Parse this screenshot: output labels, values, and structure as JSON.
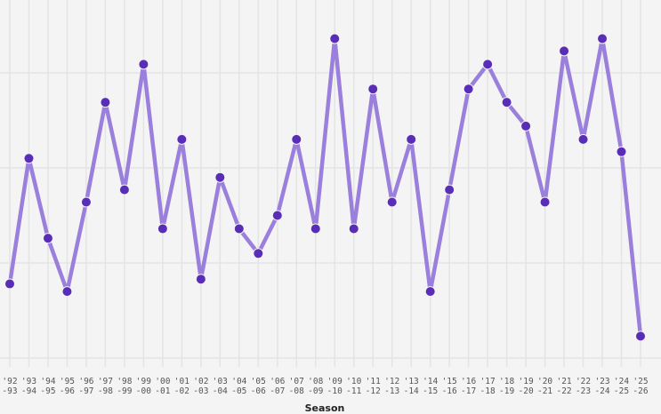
{
  "chart_data": {
    "type": "line",
    "title": "",
    "xlabel": "Season",
    "ylabel": "",
    "categories": [
      [
        "'92",
        "-93"
      ],
      [
        "'93",
        "-94"
      ],
      [
        "'94",
        "-95"
      ],
      [
        "'95",
        "-96"
      ],
      [
        "'96",
        "-97"
      ],
      [
        "'97",
        "-98"
      ],
      [
        "'98",
        "-99"
      ],
      [
        "'99",
        "-00"
      ],
      [
        "'00",
        "-01"
      ],
      [
        "'01",
        "-02"
      ],
      [
        "'02",
        "-03"
      ],
      [
        "'03",
        "-04"
      ],
      [
        "'04",
        "-05"
      ],
      [
        "'05",
        "-06"
      ],
      [
        "'06",
        "-07"
      ],
      [
        "'07",
        "-08"
      ],
      [
        "'08",
        "-09"
      ],
      [
        "'09",
        "-10"
      ],
      [
        "'10",
        "-11"
      ],
      [
        "'11",
        "-12"
      ],
      [
        "'12",
        "-13"
      ],
      [
        "'13",
        "-14"
      ],
      [
        "'14",
        "-15"
      ],
      [
        "'15",
        "-16"
      ],
      [
        "'16",
        "-17"
      ],
      [
        "'17",
        "-18"
      ],
      [
        "'18",
        "-19"
      ],
      [
        "'19",
        "-20"
      ],
      [
        "'20",
        "-21"
      ],
      [
        "'21",
        "-22"
      ],
      [
        "'22",
        "-23"
      ],
      [
        "'23",
        "-24"
      ],
      [
        "'24",
        "-25"
      ],
      [
        "'25",
        "-26"
      ]
    ],
    "values": [
      0.78,
      2.1,
      1.26,
      0.7,
      1.64,
      2.69,
      1.77,
      3.09,
      1.36,
      2.3,
      0.83,
      1.9,
      1.36,
      1.1,
      1.5,
      2.3,
      1.36,
      3.36,
      1.36,
      2.83,
      1.64,
      2.3,
      0.7,
      1.77,
      2.83,
      3.09,
      2.69,
      2.44,
      1.64,
      3.23,
      2.3,
      3.36,
      2.17,
      0.23
    ],
    "ylim": [
      -0.1,
      3.77
    ],
    "y_gridlines": [
      0,
      1,
      2,
      3
    ],
    "y_tick_labels_shown": false,
    "grid": true,
    "colors": {
      "line": "#9b7fdc",
      "marker": "#5a2db8",
      "background": "#f4f4f4",
      "grid": "#e4e4e4"
    }
  }
}
